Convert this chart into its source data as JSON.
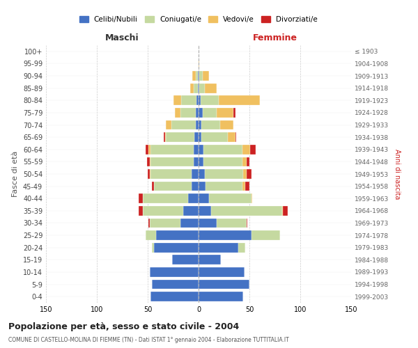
{
  "age_groups": [
    "0-4",
    "5-9",
    "10-14",
    "15-19",
    "20-24",
    "25-29",
    "30-34",
    "35-39",
    "40-44",
    "45-49",
    "50-54",
    "55-59",
    "60-64",
    "65-69",
    "70-74",
    "75-79",
    "80-84",
    "85-89",
    "90-94",
    "95-99",
    "100+"
  ],
  "birth_years": [
    "1999-2003",
    "1994-1998",
    "1989-1993",
    "1984-1988",
    "1979-1983",
    "1974-1978",
    "1969-1973",
    "1964-1968",
    "1959-1963",
    "1954-1958",
    "1949-1953",
    "1944-1948",
    "1939-1943",
    "1934-1938",
    "1929-1933",
    "1924-1928",
    "1919-1923",
    "1914-1918",
    "1909-1913",
    "1904-1908",
    "≤ 1903"
  ],
  "colors": {
    "celibi": "#4472c4",
    "coniugati": "#c5d9a0",
    "vedovi": "#f0c060",
    "divorziati": "#cc2222"
  },
  "maschi": {
    "celibi": [
      47,
      46,
      48,
      26,
      44,
      42,
      18,
      15,
      10,
      7,
      7,
      5,
      5,
      4,
      3,
      3,
      2,
      1,
      1,
      0,
      0
    ],
    "coniugati": [
      0,
      0,
      0,
      0,
      2,
      10,
      30,
      40,
      45,
      37,
      40,
      42,
      42,
      28,
      24,
      15,
      15,
      4,
      2,
      0,
      0
    ],
    "vedovi": [
      0,
      0,
      0,
      0,
      0,
      0,
      0,
      0,
      0,
      0,
      1,
      1,
      2,
      1,
      5,
      5,
      8,
      3,
      3,
      0,
      0
    ],
    "divorziati": [
      0,
      0,
      0,
      0,
      0,
      0,
      1,
      4,
      4,
      2,
      2,
      3,
      3,
      1,
      0,
      0,
      0,
      0,
      0,
      0,
      0
    ]
  },
  "femmine": {
    "nubili": [
      44,
      50,
      45,
      22,
      39,
      52,
      18,
      12,
      10,
      7,
      6,
      5,
      5,
      3,
      3,
      4,
      2,
      1,
      1,
      0,
      0
    ],
    "coniugate": [
      0,
      0,
      0,
      0,
      7,
      28,
      29,
      70,
      42,
      36,
      38,
      38,
      38,
      26,
      18,
      14,
      18,
      5,
      3,
      0,
      0
    ],
    "vedove": [
      0,
      0,
      0,
      0,
      0,
      0,
      0,
      1,
      1,
      3,
      3,
      4,
      8,
      7,
      13,
      16,
      40,
      12,
      6,
      1,
      0
    ],
    "divorziate": [
      0,
      0,
      0,
      0,
      0,
      0,
      1,
      5,
      0,
      4,
      5,
      3,
      5,
      1,
      0,
      2,
      0,
      0,
      0,
      0,
      0
    ]
  },
  "title": "Popolazione per età, sesso e stato civile - 2004",
  "subtitle": "COMUNE DI CASTELLO-MOLINA DI FIEMME (TN) - Dati ISTAT 1° gennaio 2004 - Elaborazione TUTTITALIA.IT",
  "xlabel_left": "Maschi",
  "xlabel_right": "Femmine",
  "ylabel_left": "Fasce di età",
  "ylabel_right": "Anni di nascita",
  "xlim": 150,
  "legend_labels": [
    "Celibi/Nubili",
    "Coniugati/e",
    "Vedovi/e",
    "Divorziati/e"
  ],
  "background_color": "#ffffff",
  "grid_color": "#cccccc"
}
